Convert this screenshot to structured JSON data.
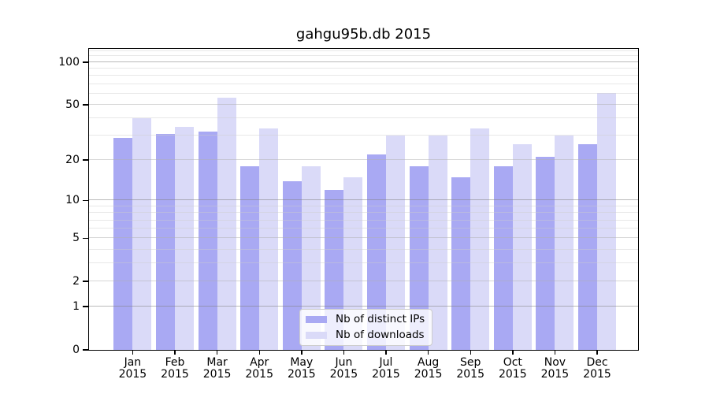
{
  "chart_data": {
    "type": "bar",
    "title": "gahgu95b.db 2015",
    "categories": [
      "Jan",
      "Feb",
      "Mar",
      "Apr",
      "May",
      "Jun",
      "Jul",
      "Aug",
      "Sep",
      "Oct",
      "Nov",
      "Dec"
    ],
    "x_tick_second_line": "2015",
    "series": [
      {
        "name": "Nb of distinct IPs",
        "color": "#a9a9f3",
        "values": [
          29,
          31,
          32,
          18,
          14,
          12,
          22,
          18,
          15,
          18,
          21,
          26
        ]
      },
      {
        "name": "Nb of downloads",
        "color": "#dadaf8",
        "values": [
          40,
          35,
          56,
          34,
          18,
          15,
          30,
          30,
          34,
          26,
          30,
          61
        ]
      }
    ],
    "y_axis": {
      "scale": "log1p",
      "ylim": [
        0,
        124
      ],
      "major_ticks": [
        0,
        1,
        2,
        5,
        10,
        20,
        50,
        100
      ],
      "decade_gridlines": [
        1,
        10,
        100
      ],
      "mid_gridlines": [
        2,
        5,
        20,
        50
      ],
      "minor_gridlines": [
        3,
        4,
        6,
        7,
        8,
        9,
        30,
        40,
        60,
        70,
        80,
        90,
        110,
        120
      ]
    },
    "grid": true,
    "legend": {
      "position": "lower center"
    }
  }
}
